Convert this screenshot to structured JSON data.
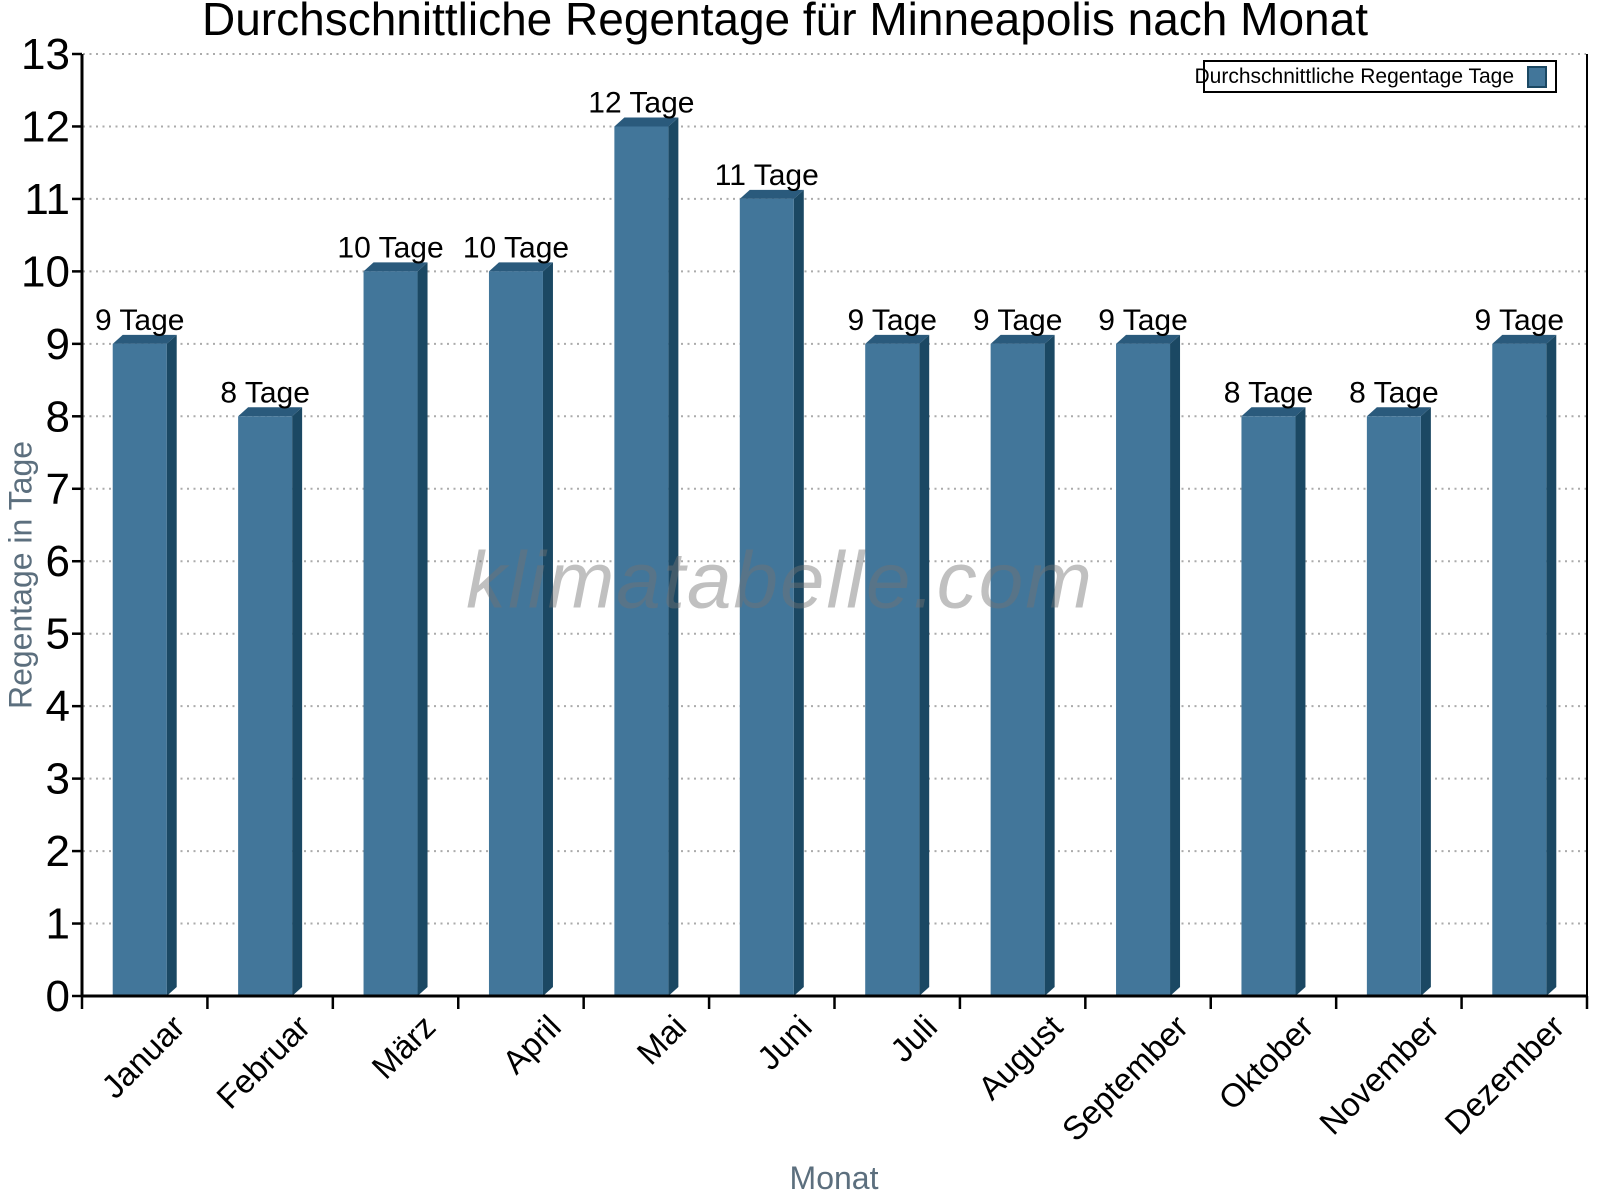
{
  "chart_data": {
    "type": "bar",
    "title": "Durchschnittliche Regentage für Minneapolis nach Monat",
    "xlabel": "Monat",
    "ylabel": "Regentage in Tage",
    "categories": [
      "Januar",
      "Februar",
      "März",
      "April",
      "Mai",
      "Juni",
      "Juli",
      "August",
      "September",
      "Oktober",
      "November",
      "Dezember"
    ],
    "values": [
      9,
      8,
      10,
      10,
      12,
      11,
      9,
      9,
      9,
      8,
      8,
      9
    ],
    "bar_labels": [
      "9 Tage",
      "8 Tage",
      "10 Tage",
      "10 Tage",
      "12 Tage",
      "11 Tage",
      "9 Tage",
      "9 Tage",
      "9 Tage",
      "8 Tage",
      "8 Tage",
      "9 Tage"
    ],
    "ylim": [
      0,
      13
    ],
    "ytick_interval": 1,
    "grid": "horizontal-dotted",
    "legend": {
      "label": "Durchschnittliche Regentage Tage",
      "position": "top-right"
    },
    "watermark": "klimatabelle.com",
    "colors": {
      "bar_face": "#42769A",
      "bar_top": "#2A5A7C",
      "bar_side": "#1B4863",
      "axis": "#000000",
      "grid": "#ababab",
      "tick_label": "#000000",
      "axis_title": "#5c6f7e",
      "watermark": "rgba(115,115,115,0.45)",
      "legend_border": "#000000"
    }
  }
}
